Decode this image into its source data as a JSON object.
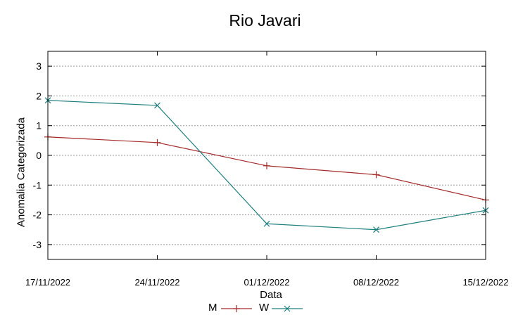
{
  "chart_data": {
    "type": "line",
    "title": "Rio Javari",
    "xlabel": "Data",
    "ylabel": "Anomalia Categorizada",
    "categories": [
      "17/11/2022",
      "24/11/2022",
      "01/12/2022",
      "08/12/2022",
      "15/12/2022"
    ],
    "yticks": [
      -3,
      -2,
      -1,
      0,
      1,
      2,
      3
    ],
    "ylim": [
      -3.5,
      3.5
    ],
    "grid": true,
    "legend_position": "bottom",
    "series": [
      {
        "name": "M",
        "color": "#a52a2a",
        "marker": "plus",
        "values": [
          0.62,
          0.43,
          -0.35,
          -0.65,
          -1.5
        ]
      },
      {
        "name": "W",
        "color": "#1f7f7f",
        "marker": "cross",
        "values": [
          1.85,
          1.68,
          -2.3,
          -2.5,
          -1.85
        ]
      }
    ]
  }
}
